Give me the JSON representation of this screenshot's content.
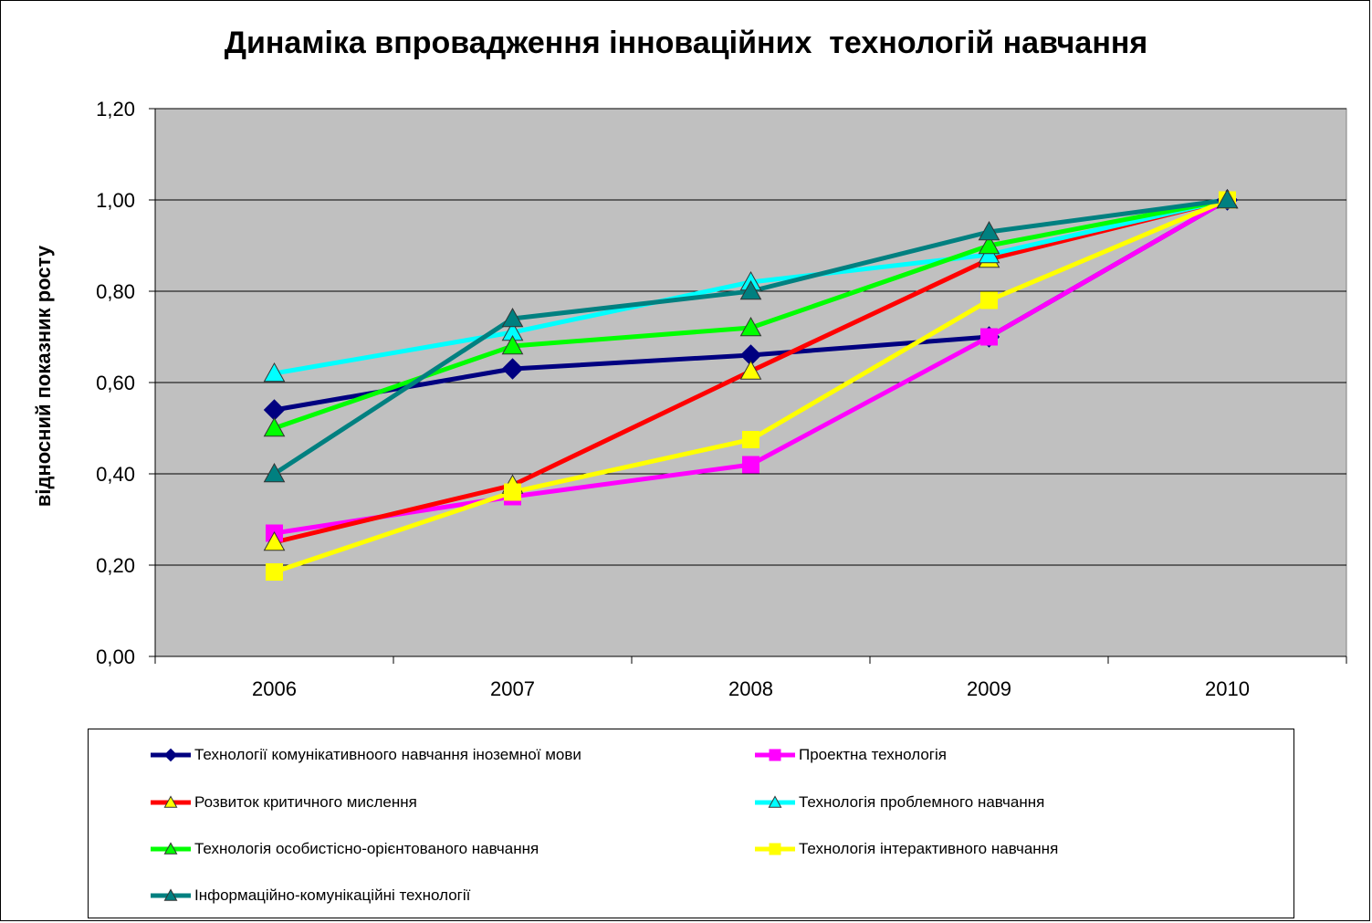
{
  "chart_data": {
    "type": "line",
    "title": "Динаміка впровадження інноваційних  технологій навчання",
    "xlabel": "",
    "ylabel": "відносний показник росту",
    "categories": [
      "2006",
      "2007",
      "2008",
      "2009",
      "2010"
    ],
    "ylim": [
      0,
      1.2
    ],
    "yticks": [
      "0,00",
      "0,20",
      "0,40",
      "0,60",
      "0,80",
      "1,00",
      "1,20"
    ],
    "grid": true,
    "legend_position": "bottom",
    "plot_background": "#C0C0C0",
    "series": [
      {
        "name": "Технології комунікативноого навчання іноземної мови",
        "values": [
          0.54,
          0.63,
          0.66,
          0.7,
          1.0
        ],
        "color": "#000080",
        "marker": "diamond",
        "marker_fill": "#000080"
      },
      {
        "name": "Проектна технологія",
        "values": [
          0.27,
          0.35,
          0.42,
          0.7,
          1.0
        ],
        "color": "#FF00FF",
        "marker": "square",
        "marker_fill": "#FF00FF"
      },
      {
        "name": "Розвиток критичного мислення",
        "values": [
          0.25,
          0.375,
          0.625,
          0.87,
          1.0
        ],
        "color": "#FF0000",
        "marker": "triangle",
        "marker_fill": "#FFFF00"
      },
      {
        "name": "Технологія проблемного навчання",
        "values": [
          0.62,
          0.71,
          0.82,
          0.88,
          1.0
        ],
        "color": "#00FFFF",
        "marker": "triangle",
        "marker_fill": "#00FFFF"
      },
      {
        "name": "Технологія особистісно-орієнтованого навчання",
        "values": [
          0.5,
          0.68,
          0.72,
          0.9,
          1.0
        ],
        "color": "#00FF00",
        "marker": "triangle",
        "marker_fill": "#00FF00"
      },
      {
        "name": "Технологія інтерактивного навчання",
        "values": [
          0.185,
          0.36,
          0.475,
          0.78,
          1.0
        ],
        "color": "#FFFF00",
        "marker": "square",
        "marker_fill": "#FFFF00"
      },
      {
        "name": "Інформаційно-комунікаційні технології",
        "values": [
          0.4,
          0.74,
          0.8,
          0.93,
          1.0
        ],
        "color": "#008080",
        "marker": "triangle",
        "marker_fill": "#008080"
      }
    ]
  }
}
